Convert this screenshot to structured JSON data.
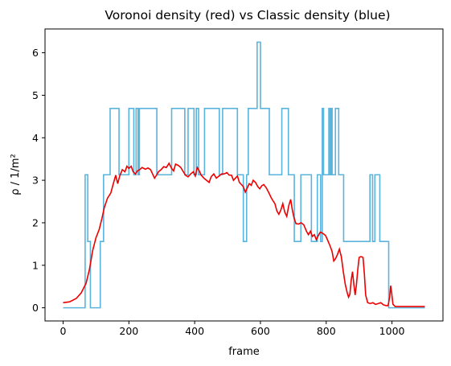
{
  "chart_data": {
    "type": "line",
    "title": "Voronoi density (red) vs Classic density (blue)",
    "xlabel": "frame",
    "ylabel": "ρ / 1/m²",
    "xlim": [
      -55,
      1155
    ],
    "ylim": [
      -0.31,
      6.56
    ],
    "xticks": [
      0,
      200,
      400,
      600,
      800,
      1000
    ],
    "yticks": [
      0,
      1,
      2,
      3,
      4,
      5,
      6
    ],
    "grid": false,
    "legend": "none",
    "series": [
      {
        "color": "#5ab4dc",
        "style": "step",
        "points": [
          [
            0,
            0
          ],
          [
            67,
            0
          ],
          [
            67,
            3.13
          ],
          [
            75,
            3.13
          ],
          [
            75,
            1.56
          ],
          [
            83,
            1.56
          ],
          [
            83,
            0
          ],
          [
            113,
            0
          ],
          [
            113,
            1.56
          ],
          [
            123,
            1.56
          ],
          [
            123,
            3.13
          ],
          [
            143,
            3.13
          ],
          [
            143,
            4.69
          ],
          [
            170,
            4.69
          ],
          [
            170,
            3.13
          ],
          [
            200,
            3.13
          ],
          [
            200,
            4.69
          ],
          [
            215,
            4.69
          ],
          [
            215,
            3.13
          ],
          [
            222,
            3.13
          ],
          [
            222,
            4.69
          ],
          [
            228,
            4.69
          ],
          [
            228,
            3.13
          ],
          [
            232,
            3.13
          ],
          [
            232,
            4.69
          ],
          [
            285,
            4.69
          ],
          [
            285,
            3.13
          ],
          [
            330,
            3.13
          ],
          [
            330,
            4.69
          ],
          [
            370,
            4.69
          ],
          [
            370,
            3.13
          ],
          [
            380,
            3.13
          ],
          [
            380,
            4.69
          ],
          [
            398,
            4.69
          ],
          [
            398,
            3.13
          ],
          [
            405,
            3.13
          ],
          [
            405,
            4.69
          ],
          [
            412,
            4.69
          ],
          [
            412,
            3.13
          ],
          [
            430,
            3.13
          ],
          [
            430,
            4.69
          ],
          [
            475,
            4.69
          ],
          [
            475,
            3.13
          ],
          [
            485,
            3.13
          ],
          [
            485,
            4.69
          ],
          [
            530,
            4.69
          ],
          [
            530,
            3.13
          ],
          [
            548,
            3.13
          ],
          [
            548,
            1.56
          ],
          [
            558,
            1.56
          ],
          [
            558,
            3.13
          ],
          [
            563,
            3.13
          ],
          [
            563,
            4.69
          ],
          [
            590,
            4.69
          ],
          [
            590,
            6.25
          ],
          [
            600,
            6.25
          ],
          [
            600,
            4.69
          ],
          [
            627,
            4.69
          ],
          [
            627,
            3.13
          ],
          [
            665,
            3.13
          ],
          [
            665,
            4.69
          ],
          [
            685,
            4.69
          ],
          [
            685,
            3.13
          ],
          [
            703,
            3.13
          ],
          [
            703,
            1.56
          ],
          [
            723,
            1.56
          ],
          [
            723,
            3.13
          ],
          [
            755,
            3.13
          ],
          [
            755,
            1.56
          ],
          [
            773,
            1.56
          ],
          [
            773,
            3.13
          ],
          [
            783,
            3.13
          ],
          [
            783,
            1.56
          ],
          [
            788,
            1.56
          ],
          [
            788,
            4.69
          ],
          [
            792,
            4.69
          ],
          [
            792,
            3.13
          ],
          [
            808,
            3.13
          ],
          [
            808,
            4.69
          ],
          [
            812,
            4.69
          ],
          [
            812,
            3.13
          ],
          [
            815,
            3.13
          ],
          [
            815,
            4.69
          ],
          [
            818,
            4.69
          ],
          [
            818,
            3.13
          ],
          [
            828,
            3.13
          ],
          [
            828,
            4.69
          ],
          [
            838,
            4.69
          ],
          [
            838,
            3.13
          ],
          [
            853,
            3.13
          ],
          [
            853,
            1.56
          ],
          [
            933,
            1.56
          ],
          [
            933,
            3.13
          ],
          [
            941,
            3.13
          ],
          [
            941,
            1.56
          ],
          [
            948,
            1.56
          ],
          [
            948,
            3.13
          ],
          [
            963,
            3.13
          ],
          [
            963,
            1.56
          ],
          [
            990,
            1.56
          ],
          [
            990,
            0
          ],
          [
            1100,
            0
          ]
        ]
      },
      {
        "color": "#ee0000",
        "style": "line",
        "points": [
          [
            0,
            0.12
          ],
          [
            20,
            0.14
          ],
          [
            40,
            0.22
          ],
          [
            55,
            0.35
          ],
          [
            70,
            0.58
          ],
          [
            80,
            0.9
          ],
          [
            90,
            1.35
          ],
          [
            100,
            1.65
          ],
          [
            110,
            1.85
          ],
          [
            118,
            2.1
          ],
          [
            125,
            2.35
          ],
          [
            135,
            2.58
          ],
          [
            145,
            2.7
          ],
          [
            152,
            2.9
          ],
          [
            160,
            3.12
          ],
          [
            166,
            2.92
          ],
          [
            172,
            3.1
          ],
          [
            180,
            3.25
          ],
          [
            188,
            3.2
          ],
          [
            194,
            3.33
          ],
          [
            200,
            3.28
          ],
          [
            207,
            3.33
          ],
          [
            213,
            3.2
          ],
          [
            220,
            3.15
          ],
          [
            226,
            3.22
          ],
          [
            233,
            3.25
          ],
          [
            240,
            3.3
          ],
          [
            250,
            3.26
          ],
          [
            258,
            3.29
          ],
          [
            266,
            3.25
          ],
          [
            272,
            3.15
          ],
          [
            278,
            3.05
          ],
          [
            284,
            3.12
          ],
          [
            290,
            3.2
          ],
          [
            298,
            3.25
          ],
          [
            306,
            3.32
          ],
          [
            314,
            3.3
          ],
          [
            322,
            3.4
          ],
          [
            330,
            3.28
          ],
          [
            336,
            3.22
          ],
          [
            342,
            3.38
          ],
          [
            350,
            3.35
          ],
          [
            358,
            3.3
          ],
          [
            364,
            3.22
          ],
          [
            372,
            3.12
          ],
          [
            380,
            3.08
          ],
          [
            388,
            3.15
          ],
          [
            396,
            3.2
          ],
          [
            402,
            3.1
          ],
          [
            408,
            3.3
          ],
          [
            414,
            3.22
          ],
          [
            420,
            3.12
          ],
          [
            428,
            3.05
          ],
          [
            436,
            3.0
          ],
          [
            444,
            2.95
          ],
          [
            450,
            3.08
          ],
          [
            458,
            3.15
          ],
          [
            466,
            3.05
          ],
          [
            474,
            3.1
          ],
          [
            482,
            3.15
          ],
          [
            490,
            3.15
          ],
          [
            498,
            3.18
          ],
          [
            505,
            3.12
          ],
          [
            512,
            3.12
          ],
          [
            518,
            3.0
          ],
          [
            524,
            3.05
          ],
          [
            530,
            3.1
          ],
          [
            536,
            2.95
          ],
          [
            542,
            2.9
          ],
          [
            548,
            2.85
          ],
          [
            554,
            2.72
          ],
          [
            560,
            2.82
          ],
          [
            566,
            2.92
          ],
          [
            572,
            2.88
          ],
          [
            578,
            3.0
          ],
          [
            585,
            2.95
          ],
          [
            592,
            2.85
          ],
          [
            598,
            2.8
          ],
          [
            604,
            2.87
          ],
          [
            610,
            2.9
          ],
          [
            618,
            2.82
          ],
          [
            626,
            2.7
          ],
          [
            632,
            2.6
          ],
          [
            638,
            2.52
          ],
          [
            644,
            2.45
          ],
          [
            650,
            2.28
          ],
          [
            656,
            2.2
          ],
          [
            662,
            2.3
          ],
          [
            668,
            2.45
          ],
          [
            674,
            2.25
          ],
          [
            680,
            2.15
          ],
          [
            686,
            2.4
          ],
          [
            692,
            2.55
          ],
          [
            697,
            2.3
          ],
          [
            702,
            2.12
          ],
          [
            708,
            1.98
          ],
          [
            716,
            1.97
          ],
          [
            724,
            2.0
          ],
          [
            732,
            1.95
          ],
          [
            740,
            1.8
          ],
          [
            746,
            1.72
          ],
          [
            752,
            1.8
          ],
          [
            758,
            1.68
          ],
          [
            764,
            1.72
          ],
          [
            770,
            1.6
          ],
          [
            776,
            1.7
          ],
          [
            782,
            1.78
          ],
          [
            790,
            1.75
          ],
          [
            798,
            1.7
          ],
          [
            805,
            1.58
          ],
          [
            812,
            1.45
          ],
          [
            818,
            1.32
          ],
          [
            823,
            1.1
          ],
          [
            828,
            1.15
          ],
          [
            834,
            1.25
          ],
          [
            840,
            1.38
          ],
          [
            846,
            1.2
          ],
          [
            852,
            0.85
          ],
          [
            858,
            0.55
          ],
          [
            864,
            0.35
          ],
          [
            868,
            0.25
          ],
          [
            872,
            0.32
          ],
          [
            876,
            0.65
          ],
          [
            880,
            0.85
          ],
          [
            884,
            0.55
          ],
          [
            888,
            0.3
          ],
          [
            892,
            0.55
          ],
          [
            896,
            0.9
          ],
          [
            900,
            1.18
          ],
          [
            904,
            1.2
          ],
          [
            908,
            1.2
          ],
          [
            912,
            1.18
          ],
          [
            916,
            0.8
          ],
          [
            920,
            0.3
          ],
          [
            926,
            0.12
          ],
          [
            934,
            0.1
          ],
          [
            942,
            0.12
          ],
          [
            950,
            0.08
          ],
          [
            958,
            0.1
          ],
          [
            966,
            0.12
          ],
          [
            974,
            0.07
          ],
          [
            982,
            0.05
          ],
          [
            988,
            0.05
          ],
          [
            993,
            0.25
          ],
          [
            996,
            0.52
          ],
          [
            999,
            0.35
          ],
          [
            1003,
            0.08
          ],
          [
            1010,
            0.03
          ],
          [
            1020,
            0.03
          ],
          [
            1100,
            0.03
          ]
        ]
      }
    ]
  }
}
